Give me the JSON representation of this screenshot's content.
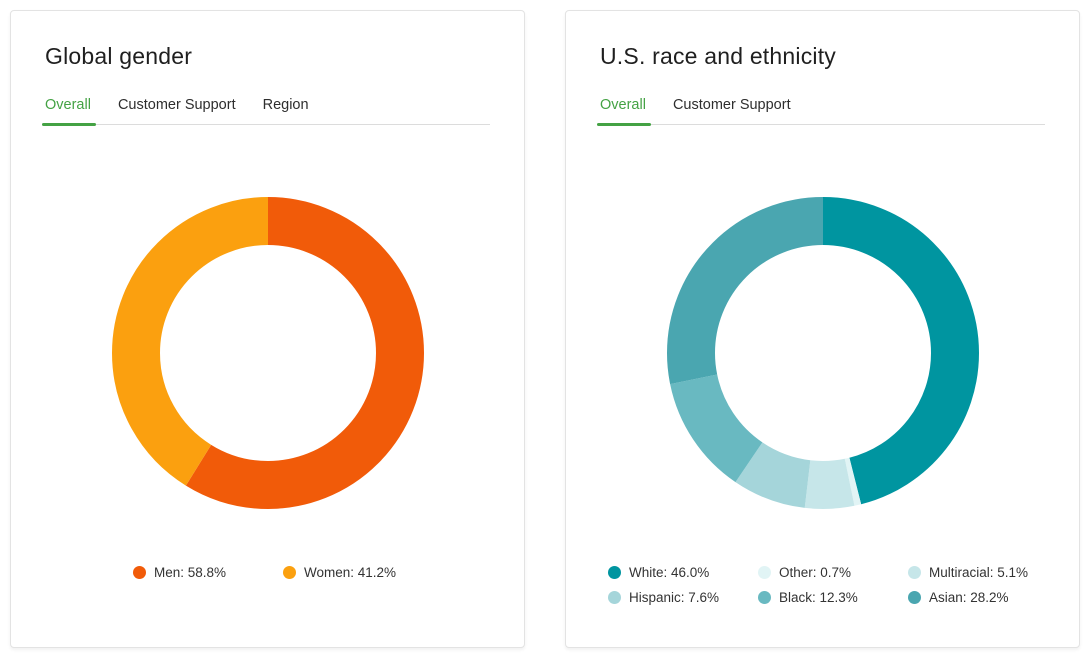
{
  "page": {
    "background": "#ffffff"
  },
  "cards": [
    {
      "title": "Global gender",
      "tabs": [
        {
          "label": "Overall",
          "active": true
        },
        {
          "label": "Customer Support",
          "active": false
        },
        {
          "label": "Region",
          "active": false
        }
      ],
      "active_tab_color": "#44A244"
    },
    {
      "title": "U.S. race and ethnicity",
      "tabs": [
        {
          "label": "Overall",
          "active": true
        },
        {
          "label": "Customer Support",
          "active": false
        }
      ],
      "active_tab_color": "#44A244"
    }
  ],
  "chart_data": [
    {
      "type": "donut",
      "title": "Global gender",
      "labels": [
        "Men",
        "Women"
      ],
      "values": [
        58.8,
        41.2
      ],
      "unit": "%",
      "colors": [
        "#F15B09",
        "#FBA00F"
      ],
      "legend_labels": [
        "Men: 58.8%",
        "Women: 41.2%"
      ],
      "legend_position": "bottom",
      "legend_columns": 2,
      "start_angle_deg": 0,
      "direction": "clockwise",
      "inner_radius_pct": 69
    },
    {
      "type": "donut",
      "title": "U.S. race and ethnicity",
      "labels": [
        "White",
        "Other",
        "Multiracial",
        "Hispanic",
        "Black",
        "Asian"
      ],
      "values": [
        46.0,
        0.7,
        5.1,
        7.6,
        12.3,
        28.2
      ],
      "unit": "%",
      "colors": [
        "#0095A0",
        "#E1F4F5",
        "#C6E6E9",
        "#A5D5DA",
        "#69B9C1",
        "#4AA6B0"
      ],
      "legend_labels": [
        "White: 46.0%",
        "Other: 0.7%",
        "Multiracial: 5.1%",
        "Hispanic: 7.6%",
        "Black: 12.3%",
        "Asian: 28.2%"
      ],
      "legend_position": "bottom",
      "legend_columns": 3,
      "start_angle_deg": 0,
      "direction": "clockwise",
      "inner_radius_pct": 69
    }
  ]
}
